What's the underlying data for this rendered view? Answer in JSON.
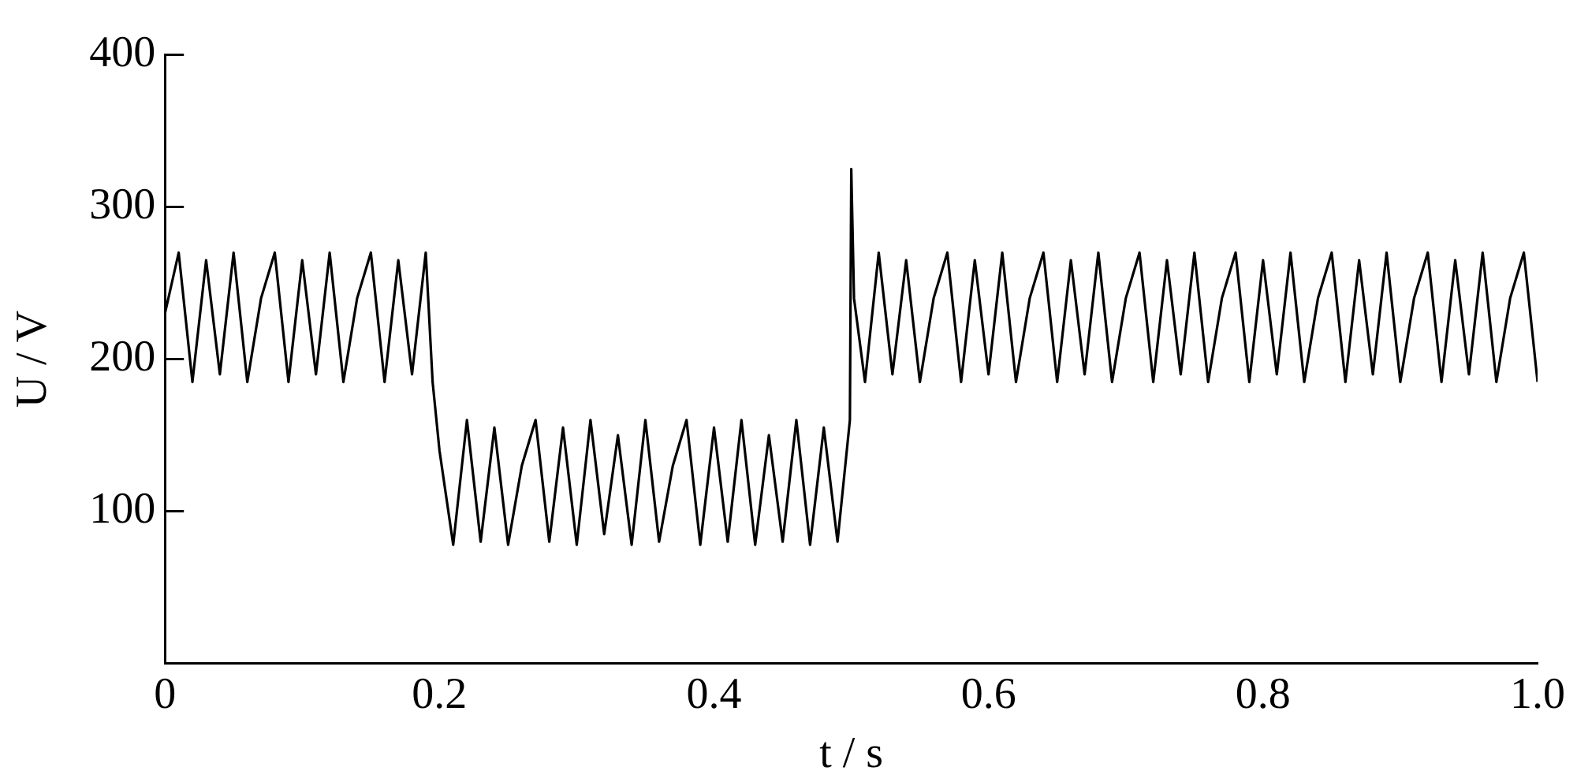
{
  "chart_data": {
    "type": "line",
    "xlabel": "t / s",
    "ylabel": "U / V",
    "x": [
      0,
      0.01,
      0.02,
      0.03,
      0.04,
      0.05,
      0.06,
      0.07,
      0.08,
      0.09,
      0.1,
      0.11,
      0.12,
      0.13,
      0.14,
      0.15,
      0.16,
      0.17,
      0.18,
      0.19,
      0.195,
      0.2,
      0.21,
      0.22,
      0.23,
      0.24,
      0.25,
      0.26,
      0.27,
      0.28,
      0.29,
      0.3,
      0.31,
      0.32,
      0.33,
      0.34,
      0.35,
      0.36,
      0.37,
      0.38,
      0.39,
      0.4,
      0.41,
      0.42,
      0.43,
      0.44,
      0.45,
      0.46,
      0.47,
      0.48,
      0.49,
      0.499,
      0.5,
      0.502,
      0.51,
      0.52,
      0.53,
      0.54,
      0.55,
      0.56,
      0.57,
      0.58,
      0.59,
      0.6,
      0.61,
      0.62,
      0.63,
      0.64,
      0.65,
      0.66,
      0.67,
      0.68,
      0.69,
      0.7,
      0.71,
      0.72,
      0.73,
      0.74,
      0.75,
      0.76,
      0.77,
      0.78,
      0.79,
      0.8,
      0.81,
      0.82,
      0.83,
      0.84,
      0.85,
      0.86,
      0.87,
      0.88,
      0.89,
      0.9,
      0.91,
      0.92,
      0.93,
      0.94,
      0.95,
      0.96,
      0.97,
      0.98,
      0.99,
      1.0
    ],
    "series": [
      {
        "color": "#000000",
        "values": [
          230,
          270,
          185,
          265,
          190,
          270,
          185,
          240,
          270,
          185,
          265,
          190,
          270,
          185,
          240,
          270,
          185,
          265,
          190,
          270,
          185,
          140,
          78,
          160,
          80,
          155,
          78,
          130,
          160,
          80,
          155,
          78,
          160,
          85,
          150,
          78,
          160,
          80,
          130,
          160,
          78,
          155,
          80,
          160,
          78,
          150,
          80,
          160,
          78,
          155,
          80,
          160,
          325,
          240,
          185,
          270,
          190,
          265,
          185,
          240,
          270,
          185,
          265,
          190,
          270,
          185,
          240,
          270,
          185,
          265,
          190,
          270,
          185,
          240,
          270,
          185,
          265,
          190,
          270,
          185,
          240,
          270,
          185,
          265,
          190,
          270,
          185,
          240,
          270,
          185,
          265,
          190,
          270,
          185,
          240,
          270,
          185,
          265,
          190,
          270,
          185,
          240,
          270,
          185
        ]
      }
    ],
    "xlim": [
      0,
      1.0
    ],
    "xticks": [
      0,
      0.2,
      0.4,
      0.6,
      0.8,
      {
        "value": 1.0,
        "label": "1.0"
      }
    ],
    "ylim": [
      0,
      400
    ],
    "yticks": [
      {
        "value": 0,
        "label": null
      },
      100,
      200,
      300,
      400
    ],
    "grid": false,
    "legend": false,
    "marker": "none",
    "line_style": "solid"
  }
}
